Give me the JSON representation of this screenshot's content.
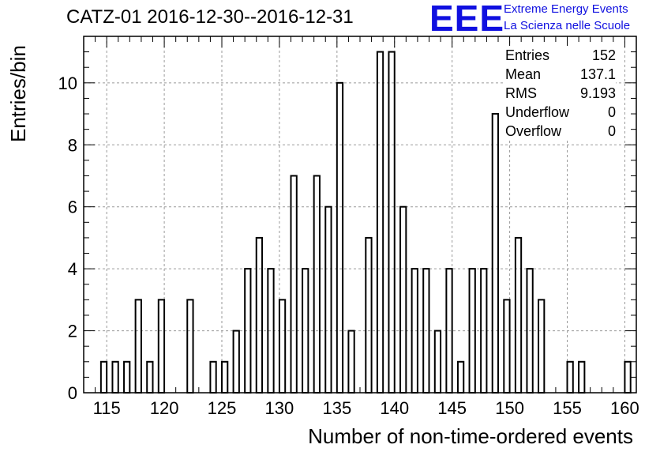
{
  "title": "CATZ-01 2016-12-30--2016-12-31",
  "logo": {
    "mark": "EEE",
    "line1": "Extreme Energy Events",
    "line2": "La Scienza nelle Scuole"
  },
  "stats": [
    {
      "label": "Entries",
      "value": "152"
    },
    {
      "label": "Mean",
      "value": "137.1"
    },
    {
      "label": "RMS",
      "value": "9.193"
    },
    {
      "label": "Underflow",
      "value": "0"
    },
    {
      "label": "Overflow",
      "value": "0"
    }
  ],
  "chart_data": {
    "type": "bar",
    "title": "CATZ-01 2016-12-30--2016-12-31",
    "xlabel": "Number of non-time-ordered events",
    "ylabel": "Entries/bin",
    "xlim": [
      113,
      161
    ],
    "ylim": [
      0,
      11.5
    ],
    "bin_width": 0.5,
    "x_ticks": [
      115,
      120,
      125,
      130,
      135,
      140,
      145,
      150,
      155,
      160
    ],
    "y_ticks": [
      0,
      2,
      4,
      6,
      8,
      10
    ],
    "grid": true,
    "bins": [
      {
        "x": 115,
        "value": 1
      },
      {
        "x": 116,
        "value": 1
      },
      {
        "x": 117,
        "value": 1
      },
      {
        "x": 118,
        "value": 3
      },
      {
        "x": 119,
        "value": 1
      },
      {
        "x": 120,
        "value": 3
      },
      {
        "x": 122.5,
        "value": 3
      },
      {
        "x": 124.5,
        "value": 1
      },
      {
        "x": 125.5,
        "value": 1
      },
      {
        "x": 126.5,
        "value": 2
      },
      {
        "x": 127.5,
        "value": 4
      },
      {
        "x": 128.5,
        "value": 5
      },
      {
        "x": 129.5,
        "value": 4
      },
      {
        "x": 130.5,
        "value": 3
      },
      {
        "x": 131.5,
        "value": 7
      },
      {
        "x": 132.5,
        "value": 4
      },
      {
        "x": 133.5,
        "value": 7
      },
      {
        "x": 134.5,
        "value": 6
      },
      {
        "x": 135.5,
        "value": 10
      },
      {
        "x": 136.5,
        "value": 2
      },
      {
        "x": 138,
        "value": 5
      },
      {
        "x": 139,
        "value": 11
      },
      {
        "x": 140,
        "value": 11
      },
      {
        "x": 141,
        "value": 6
      },
      {
        "x": 142,
        "value": 4
      },
      {
        "x": 143,
        "value": 4
      },
      {
        "x": 144,
        "value": 2
      },
      {
        "x": 145,
        "value": 4
      },
      {
        "x": 146,
        "value": 1
      },
      {
        "x": 147,
        "value": 4
      },
      {
        "x": 148,
        "value": 4
      },
      {
        "x": 149,
        "value": 9
      },
      {
        "x": 150,
        "value": 3
      },
      {
        "x": 151,
        "value": 5
      },
      {
        "x": 152,
        "value": 4
      },
      {
        "x": 153,
        "value": 3
      },
      {
        "x": 155.5,
        "value": 1
      },
      {
        "x": 156.5,
        "value": 1
      },
      {
        "x": 160.5,
        "value": 1
      }
    ]
  }
}
